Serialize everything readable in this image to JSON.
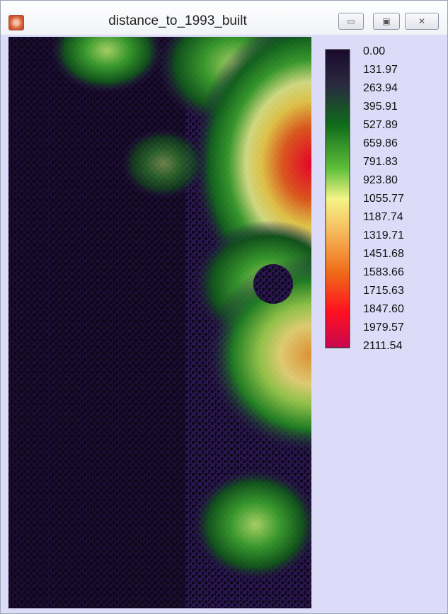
{
  "window": {
    "title": "distance_to_1993_built"
  },
  "legend": {
    "labels": [
      "0.00",
      "131.97",
      "263.94",
      "395.91",
      "527.89",
      "659.86",
      "791.83",
      "923.80",
      "1055.77",
      "1187.74",
      "1319.71",
      "1451.68",
      "1583.66",
      "1715.63",
      "1847.60",
      "1979.57",
      "2111.54"
    ]
  }
}
